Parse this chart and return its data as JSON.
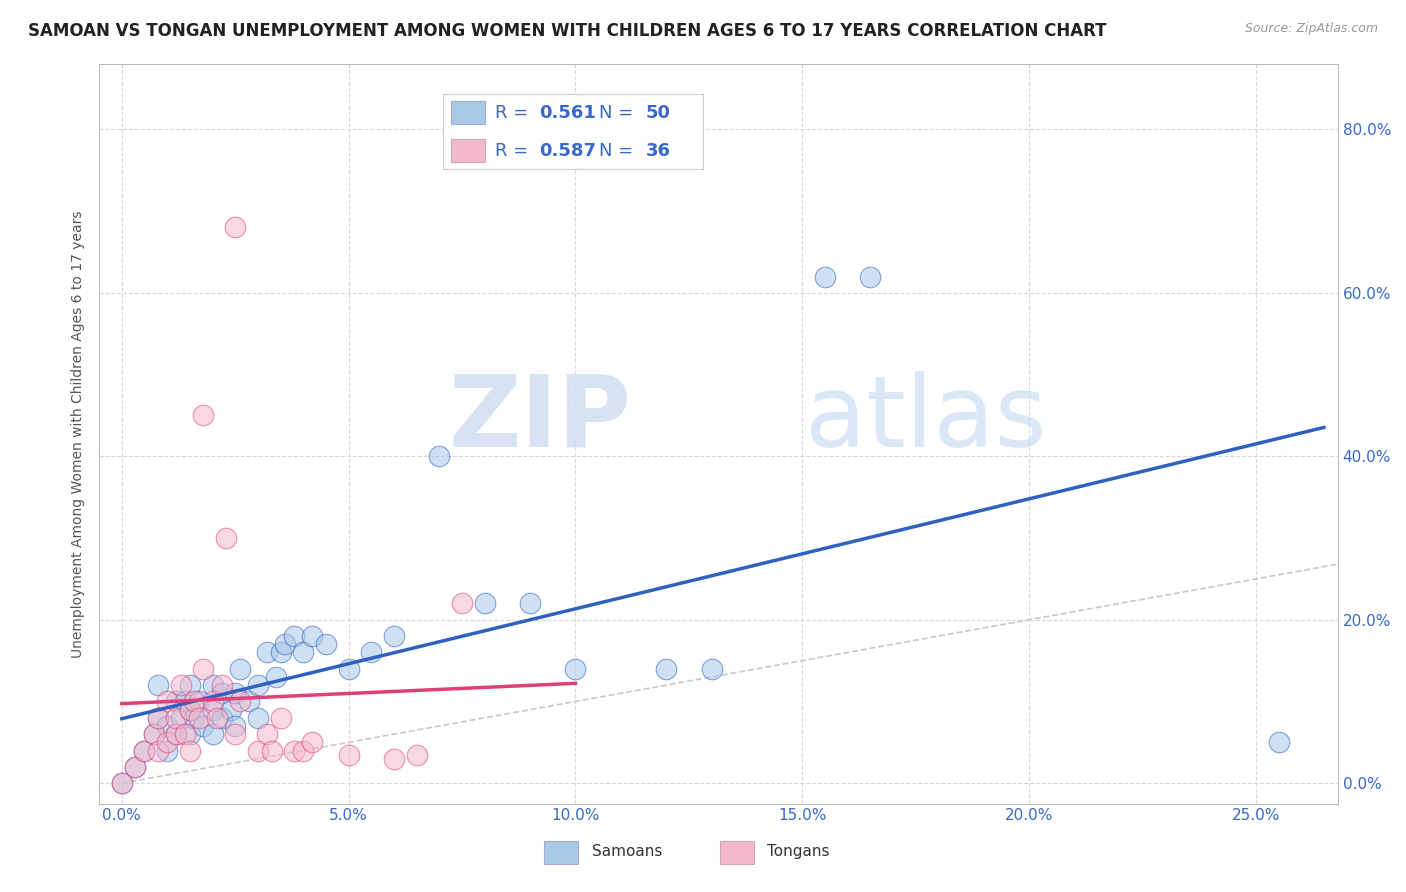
{
  "title": "SAMOAN VS TONGAN UNEMPLOYMENT AMONG WOMEN WITH CHILDREN AGES 6 TO 17 YEARS CORRELATION CHART",
  "source": "Source: ZipAtlas.com",
  "xlabel_vals": [
    0.0,
    0.05,
    0.1,
    0.15,
    0.2,
    0.25
  ],
  "ylabel_vals": [
    0.0,
    0.2,
    0.4,
    0.6,
    0.8
  ],
  "xlim": [
    -0.005,
    0.268
  ],
  "ylim": [
    -0.025,
    0.88
  ],
  "ylabel": "Unemployment Among Women with Children Ages 6 to 17 years",
  "samoan_color": "#a8c8e8",
  "tongan_color": "#f4b8cc",
  "samoan_line_color": "#3060c0",
  "tongan_line_color": "#e0407a",
  "diagonal_color": "#c8c8c8",
  "R_samoan": 0.561,
  "N_samoan": 50,
  "R_tongan": 0.587,
  "N_tongan": 36,
  "background_color": "#ffffff",
  "grid_color": "#d8d8d8",
  "legend_text_color": "#3868c8",
  "samoan_points": [
    [
      0.0,
      0.0
    ],
    [
      0.003,
      0.02
    ],
    [
      0.005,
      0.04
    ],
    [
      0.007,
      0.06
    ],
    [
      0.008,
      0.08
    ],
    [
      0.008,
      0.12
    ],
    [
      0.01,
      0.04
    ],
    [
      0.01,
      0.07
    ],
    [
      0.012,
      0.06
    ],
    [
      0.012,
      0.1
    ],
    [
      0.013,
      0.08
    ],
    [
      0.014,
      0.1
    ],
    [
      0.015,
      0.06
    ],
    [
      0.015,
      0.09
    ],
    [
      0.015,
      0.12
    ],
    [
      0.016,
      0.08
    ],
    [
      0.017,
      0.1
    ],
    [
      0.018,
      0.07
    ],
    [
      0.02,
      0.06
    ],
    [
      0.02,
      0.09
    ],
    [
      0.02,
      0.12
    ],
    [
      0.022,
      0.08
    ],
    [
      0.022,
      0.11
    ],
    [
      0.024,
      0.09
    ],
    [
      0.025,
      0.07
    ],
    [
      0.025,
      0.11
    ],
    [
      0.026,
      0.14
    ],
    [
      0.028,
      0.1
    ],
    [
      0.03,
      0.08
    ],
    [
      0.03,
      0.12
    ],
    [
      0.032,
      0.16
    ],
    [
      0.034,
      0.13
    ],
    [
      0.035,
      0.16
    ],
    [
      0.036,
      0.17
    ],
    [
      0.038,
      0.18
    ],
    [
      0.04,
      0.16
    ],
    [
      0.042,
      0.18
    ],
    [
      0.045,
      0.17
    ],
    [
      0.05,
      0.14
    ],
    [
      0.055,
      0.16
    ],
    [
      0.06,
      0.18
    ],
    [
      0.07,
      0.4
    ],
    [
      0.08,
      0.22
    ],
    [
      0.09,
      0.22
    ],
    [
      0.1,
      0.14
    ],
    [
      0.12,
      0.14
    ],
    [
      0.13,
      0.14
    ],
    [
      0.155,
      0.62
    ],
    [
      0.165,
      0.62
    ],
    [
      0.255,
      0.05
    ]
  ],
  "tongan_points": [
    [
      0.0,
      0.0
    ],
    [
      0.003,
      0.02
    ],
    [
      0.005,
      0.04
    ],
    [
      0.007,
      0.06
    ],
    [
      0.008,
      0.04
    ],
    [
      0.008,
      0.08
    ],
    [
      0.01,
      0.05
    ],
    [
      0.01,
      0.1
    ],
    [
      0.012,
      0.06
    ],
    [
      0.012,
      0.08
    ],
    [
      0.013,
      0.12
    ],
    [
      0.014,
      0.06
    ],
    [
      0.015,
      0.04
    ],
    [
      0.015,
      0.09
    ],
    [
      0.016,
      0.1
    ],
    [
      0.017,
      0.08
    ],
    [
      0.018,
      0.14
    ],
    [
      0.02,
      0.1
    ],
    [
      0.021,
      0.08
    ],
    [
      0.022,
      0.12
    ],
    [
      0.023,
      0.3
    ],
    [
      0.025,
      0.06
    ],
    [
      0.026,
      0.1
    ],
    [
      0.03,
      0.04
    ],
    [
      0.032,
      0.06
    ],
    [
      0.033,
      0.04
    ],
    [
      0.035,
      0.08
    ],
    [
      0.038,
      0.04
    ],
    [
      0.04,
      0.04
    ],
    [
      0.042,
      0.05
    ],
    [
      0.05,
      0.035
    ],
    [
      0.06,
      0.03
    ],
    [
      0.065,
      0.035
    ],
    [
      0.018,
      0.45
    ],
    [
      0.025,
      0.68
    ],
    [
      0.075,
      0.22
    ]
  ],
  "watermark_zip": "ZIP",
  "watermark_atlas": "atlas",
  "title_fontsize": 12,
  "axis_label_fontsize": 10,
  "tick_fontsize": 11,
  "legend_fontsize": 13
}
